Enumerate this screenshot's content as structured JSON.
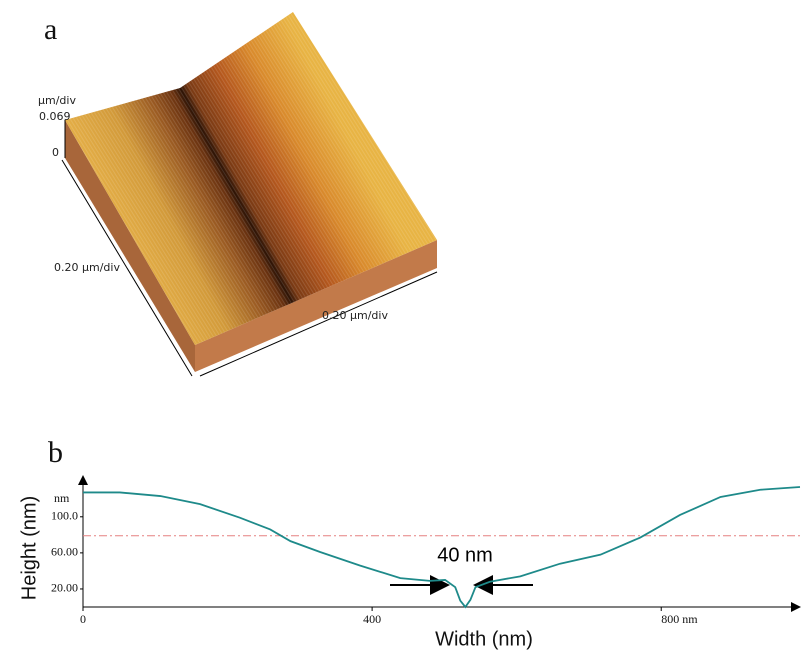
{
  "panel_a": {
    "label": "a",
    "z_unit": "µm/div",
    "z_max": "0.069",
    "z_min": "0",
    "y_scale": "0.20 µm/div",
    "x_scale": "0.20 µm/div"
  },
  "chart_data": {
    "type": "line",
    "panel_label": "b",
    "x_label": "Width (nm)",
    "y_label": "Height (nm)",
    "y_unit": "nm",
    "annotation": "40 nm",
    "x": [
      0,
      51,
      107,
      162,
      217,
      259,
      287,
      328,
      383,
      439,
      480,
      501,
      515,
      522,
      529,
      536,
      543,
      563,
      605,
      660,
      716,
      771,
      826,
      882,
      937,
      992
    ],
    "series": [
      {
        "color": "#1e8a8a",
        "values": [
          127,
          127,
          123,
          114,
          99,
          86,
          73,
          61,
          46,
          32,
          29,
          30,
          22,
          7,
          0,
          8,
          22,
          28,
          34,
          48,
          58,
          77,
          102,
          122,
          130,
          133
        ]
      }
    ],
    "reference_line": 79,
    "reference_color": "#e58080",
    "xlim": [
      0,
      992
    ],
    "ylim": [
      0,
      143
    ],
    "xticks": [
      0,
      400,
      {
        "value": 800,
        "label": "800 nm"
      }
    ],
    "yticks": [
      {
        "value": 20,
        "label": "20.00"
      },
      {
        "value": 60,
        "label": "60.00"
      },
      {
        "value": 100,
        "label": "100.0"
      }
    ]
  }
}
